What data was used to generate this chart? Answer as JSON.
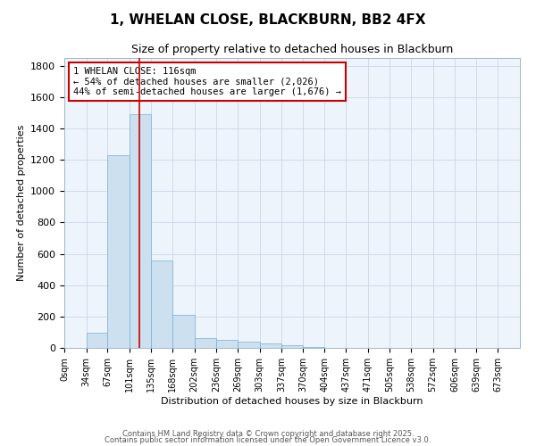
{
  "title": "1, WHELAN CLOSE, BLACKBURN, BB2 4FX",
  "subtitle": "Size of property relative to detached houses in Blackburn",
  "xlabel": "Distribution of detached houses by size in Blackburn",
  "ylabel": "Number of detached properties",
  "bar_labels": [
    "0sqm",
    "34sqm",
    "67sqm",
    "101sqm",
    "135sqm",
    "168sqm",
    "202sqm",
    "236sqm",
    "269sqm",
    "303sqm",
    "337sqm",
    "370sqm",
    "404sqm",
    "437sqm",
    "471sqm",
    "505sqm",
    "538sqm",
    "572sqm",
    "606sqm",
    "639sqm",
    "673sqm"
  ],
  "bar_values": [
    0,
    95,
    1230,
    1490,
    560,
    210,
    65,
    50,
    38,
    28,
    15,
    5,
    2,
    1,
    0,
    0,
    0,
    0,
    0,
    0,
    0
  ],
  "bar_color": "#cce0f0",
  "bar_edge_color": "#7ab0d4",
  "vline_x": 116,
  "vline_color": "#cc0000",
  "annotation_text": "1 WHELAN CLOSE: 116sqm\n← 54% of detached houses are smaller (2,026)\n44% of semi-detached houses are larger (1,676) →",
  "annotation_box_color": "#ffffff",
  "annotation_box_edge": "#cc0000",
  "ylim": [
    0,
    1850
  ],
  "yticks": [
    0,
    200,
    400,
    600,
    800,
    1000,
    1200,
    1400,
    1600,
    1800
  ],
  "footer1": "Contains HM Land Registry data © Crown copyright and database right 2025.",
  "footer2": "Contains public sector information licensed under the Open Government Licence v3.0.",
  "bin_starts": [
    0,
    34,
    67,
    101,
    135,
    168,
    202,
    236,
    269,
    303,
    337,
    370,
    404,
    437,
    471,
    505,
    538,
    572,
    606,
    639,
    673
  ]
}
